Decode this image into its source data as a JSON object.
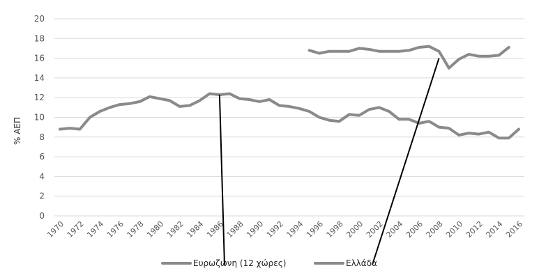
{
  "chart_data": {
    "type": "line",
    "ylabel": "% ΑΕΠ",
    "xlabel": "",
    "ylim": [
      0,
      20
    ],
    "yticks": [
      0,
      2,
      4,
      6,
      8,
      10,
      12,
      14,
      16,
      18,
      20
    ],
    "xticks": [
      "1970",
      "1972",
      "1974",
      "1976",
      "1978",
      "1980",
      "1982",
      "1984",
      "1986",
      "1988",
      "1990",
      "1992",
      "1994",
      "1996",
      "1998",
      "2000",
      "2002",
      "2004",
      "2006",
      "2008",
      "2010",
      "2012",
      "2014",
      "2016"
    ],
    "grid": true,
    "legend_position": "bottom",
    "series": [
      {
        "name": "Ευρωζώνη (12 χώρες)",
        "color": "#8a8a8a",
        "x": [
          1970,
          1971,
          1972,
          1973,
          1974,
          1975,
          1976,
          1977,
          1978,
          1979,
          1980,
          1981,
          1982,
          1983,
          1984,
          1985,
          1986,
          1987,
          1988,
          1989,
          1990,
          1991,
          1992,
          1993,
          1994,
          1995,
          1996,
          1997,
          1998,
          1999,
          2000,
          2001,
          2002,
          2003,
          2004,
          2005,
          2006,
          2007,
          2008,
          2009,
          2010,
          2011,
          2012,
          2013,
          2014,
          2015,
          2016
        ],
        "values": [
          8.8,
          8.9,
          8.8,
          10.0,
          10.6,
          11.0,
          11.3,
          11.4,
          11.6,
          12.1,
          11.9,
          11.7,
          11.1,
          11.2,
          11.7,
          12.4,
          12.3,
          12.4,
          11.9,
          11.8,
          11.6,
          11.8,
          11.2,
          11.1,
          10.9,
          10.6,
          10.0,
          9.7,
          9.6,
          10.3,
          10.2,
          10.8,
          11.0,
          10.6,
          9.8,
          9.8,
          9.4,
          9.6,
          9.0,
          8.9,
          8.2,
          8.4,
          8.3,
          8.5,
          7.9,
          7.9,
          8.8
        ]
      },
      {
        "name": "Ελλάδα",
        "color": "#8a8a8a",
        "x": [
          1995,
          1996,
          1997,
          1998,
          1999,
          2000,
          2001,
          2002,
          2003,
          2004,
          2005,
          2006,
          2007,
          2008,
          2009,
          2010,
          2011,
          2012,
          2013,
          2014,
          2015
        ],
        "values": [
          16.8,
          16.5,
          16.7,
          16.7,
          16.7,
          17.0,
          16.9,
          16.7,
          16.7,
          16.7,
          16.8,
          17.1,
          17.2,
          16.7,
          15.0,
          15.9,
          16.4,
          16.2,
          16.2,
          16.3,
          17.1
        ]
      }
    ],
    "annotations": [
      {
        "from_series": 0,
        "x": 1986,
        "y": 12.3,
        "to": "legend-0"
      },
      {
        "from_series": 1,
        "x": 2008,
        "y": 16.0,
        "to": "legend-1"
      }
    ]
  }
}
